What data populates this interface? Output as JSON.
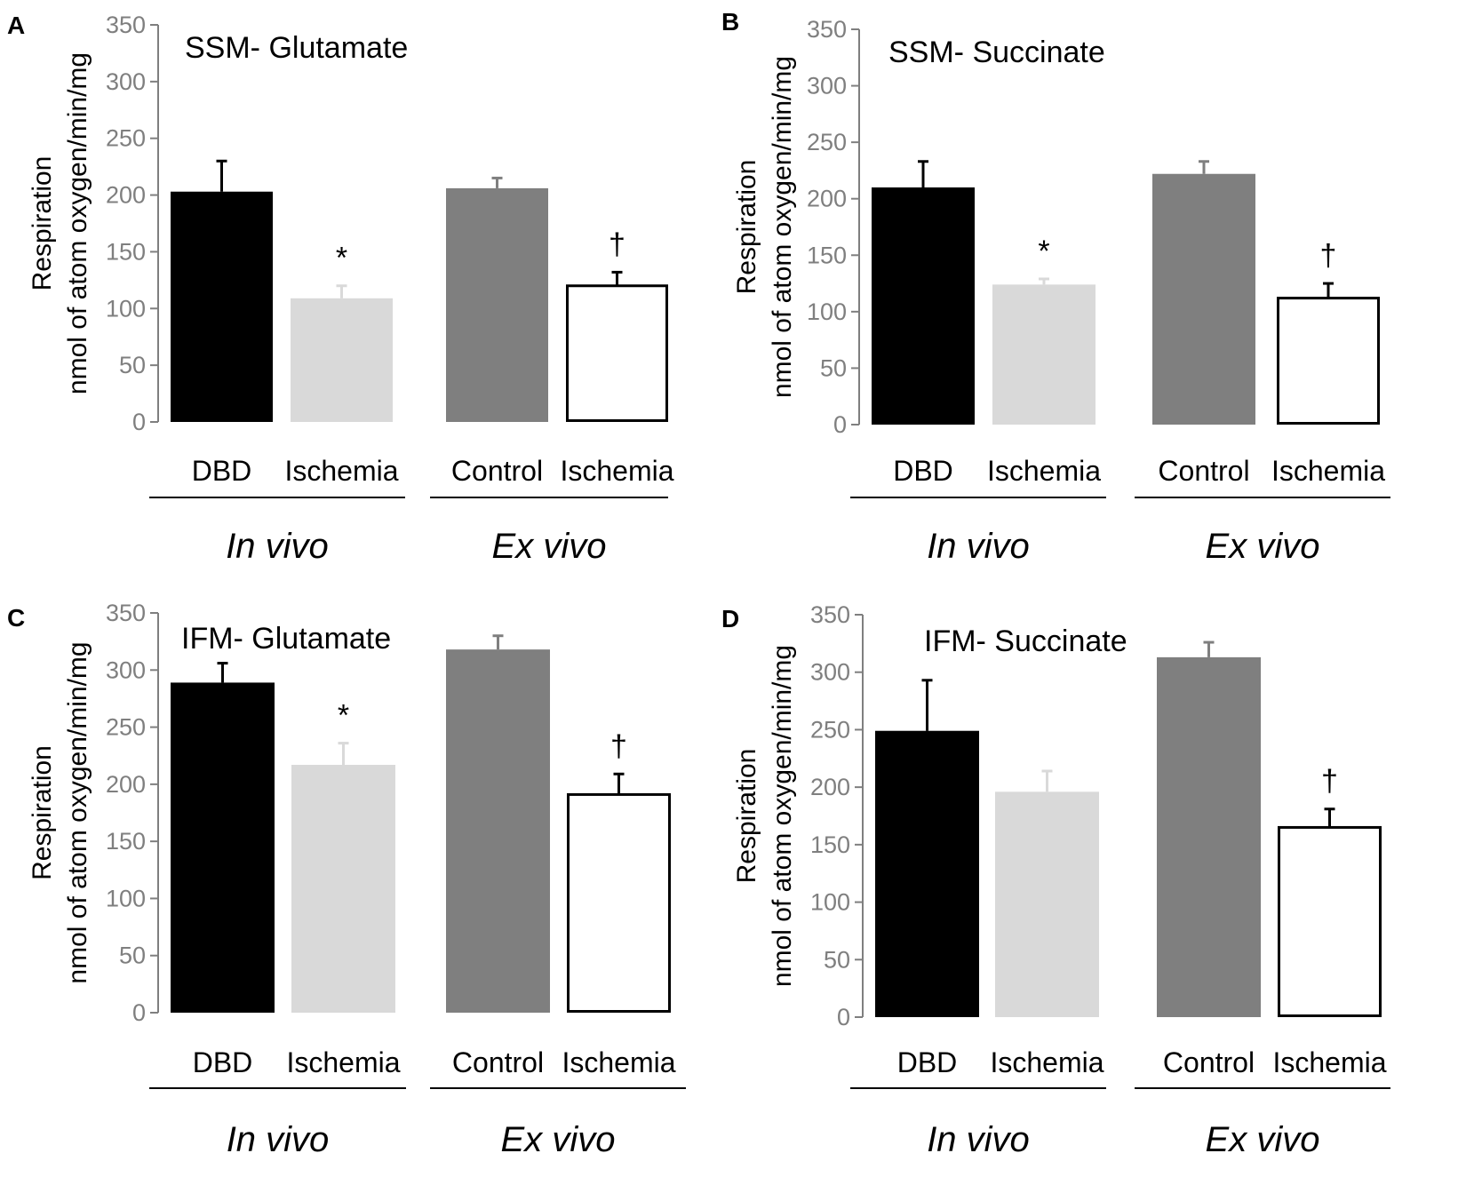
{
  "colors": {
    "DBD": "#000000",
    "Ischemia_in_vivo": "#d9d9d9",
    "Control": "#7f7f7f",
    "Ischemia_ex_vivo": "#ffffff",
    "axis": "#7f7f7f",
    "text": "#000000"
  },
  "chart_data": [
    {
      "type": "bar",
      "panel": "A",
      "title": "SSM- Glutamate",
      "ylabel": [
        "Respiration",
        "nmol of atom oxygen/min/mg"
      ],
      "ylim": [
        0,
        350
      ],
      "yticks": [
        0,
        50,
        100,
        150,
        200,
        250,
        300,
        350
      ],
      "categories": [
        "DBD",
        "Ischemia",
        "Control",
        "Ischemia"
      ],
      "groups": [
        {
          "name": "In vivo",
          "categories": [
            0,
            1
          ]
        },
        {
          "name": "Ex vivo",
          "categories": [
            2,
            3
          ]
        }
      ],
      "values": [
        203,
        109,
        206,
        120
      ],
      "errors": [
        27,
        11,
        9,
        12
      ],
      "significance": [
        "",
        "*",
        "",
        "†"
      ]
    },
    {
      "type": "bar",
      "panel": "B",
      "title": "SSM- Succinate",
      "ylabel": [
        "Respiration",
        "nmol of atom oxygen/min/mg"
      ],
      "ylim": [
        0,
        350
      ],
      "yticks": [
        0,
        50,
        100,
        150,
        200,
        250,
        300,
        350
      ],
      "categories": [
        "DBD",
        "Ischemia",
        "Control",
        "Ischemia"
      ],
      "groups": [
        {
          "name": "In vivo",
          "categories": [
            0,
            1
          ]
        },
        {
          "name": "Ex vivo",
          "categories": [
            2,
            3
          ]
        }
      ],
      "values": [
        210,
        124,
        222,
        112
      ],
      "errors": [
        23,
        5,
        11,
        13
      ],
      "significance": [
        "",
        "*",
        "",
        "†"
      ]
    },
    {
      "type": "bar",
      "panel": "C",
      "title": "IFM- Glutamate",
      "ylabel": [
        "Respiration",
        "nmol of atom oxygen/min/mg"
      ],
      "ylim": [
        0,
        350
      ],
      "yticks": [
        0,
        50,
        100,
        150,
        200,
        250,
        300,
        350
      ],
      "categories": [
        "DBD",
        "Ischemia",
        "Control",
        "Ischemia"
      ],
      "groups": [
        {
          "name": "In vivo",
          "categories": [
            0,
            1
          ]
        },
        {
          "name": "Ex vivo",
          "categories": [
            2,
            3
          ]
        }
      ],
      "values": [
        289,
        217,
        318,
        191
      ],
      "errors": [
        17,
        19,
        12,
        18
      ],
      "significance": [
        "",
        "*",
        "",
        "†"
      ]
    },
    {
      "type": "bar",
      "panel": "D",
      "title": "IFM- Succinate",
      "ylabel": [
        "Respiration",
        "nmol of atom oxygen/min/mg"
      ],
      "ylim": [
        0,
        350
      ],
      "yticks": [
        0,
        50,
        100,
        150,
        200,
        250,
        300,
        350
      ],
      "categories": [
        "DBD",
        "Ischemia",
        "Control",
        "Ischemia"
      ],
      "groups": [
        {
          "name": "In vivo",
          "categories": [
            0,
            1
          ]
        },
        {
          "name": "Ex vivo",
          "categories": [
            2,
            3
          ]
        }
      ],
      "values": [
        249,
        196,
        313,
        165
      ],
      "errors": [
        44,
        18,
        13,
        16
      ],
      "significance": [
        "",
        "",
        "",
        "†"
      ]
    }
  ]
}
